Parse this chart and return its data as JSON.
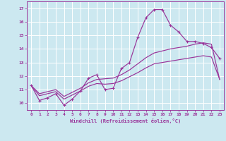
{
  "xlabel": "Windchill (Refroidissement éolien,°C)",
  "xlim": [
    -0.5,
    23.5
  ],
  "ylim": [
    9.5,
    17.5
  ],
  "xticks": [
    0,
    1,
    2,
    3,
    4,
    5,
    6,
    7,
    8,
    9,
    10,
    11,
    12,
    13,
    14,
    15,
    16,
    17,
    18,
    19,
    20,
    21,
    22,
    23
  ],
  "yticks": [
    10,
    11,
    12,
    13,
    14,
    15,
    16,
    17
  ],
  "background_color": "#cce8f0",
  "line_color": "#993399",
  "grid_color": "#ffffff",
  "line1_x": [
    0,
    1,
    2,
    3,
    4,
    5,
    6,
    7,
    8,
    9,
    10,
    11,
    12,
    13,
    14,
    15,
    16,
    17,
    18,
    19,
    20,
    21,
    22,
    23
  ],
  "line1_y": [
    11.3,
    10.2,
    10.4,
    10.7,
    9.85,
    10.3,
    10.9,
    11.85,
    12.1,
    11.0,
    11.1,
    12.55,
    13.0,
    14.85,
    16.3,
    16.9,
    16.9,
    15.75,
    15.25,
    14.55,
    14.55,
    14.4,
    14.1,
    13.3
  ],
  "line2_x": [
    0,
    1,
    2,
    3,
    4,
    5,
    6,
    7,
    8,
    9,
    10,
    11,
    12,
    13,
    14,
    15,
    16,
    17,
    18,
    19,
    20,
    21,
    22,
    23
  ],
  "line2_y": [
    11.3,
    10.7,
    10.85,
    11.0,
    10.5,
    10.8,
    11.1,
    11.5,
    11.75,
    11.8,
    11.85,
    12.1,
    12.45,
    12.9,
    13.35,
    13.7,
    13.85,
    14.0,
    14.1,
    14.2,
    14.35,
    14.45,
    14.35,
    11.75
  ],
  "line3_x": [
    0,
    1,
    2,
    3,
    4,
    5,
    6,
    7,
    8,
    9,
    10,
    11,
    12,
    13,
    14,
    15,
    16,
    17,
    18,
    19,
    20,
    21,
    22,
    23
  ],
  "line3_y": [
    11.3,
    10.55,
    10.7,
    10.85,
    10.3,
    10.6,
    10.9,
    11.25,
    11.45,
    11.4,
    11.45,
    11.65,
    11.95,
    12.25,
    12.6,
    12.9,
    13.0,
    13.1,
    13.2,
    13.3,
    13.4,
    13.5,
    13.4,
    11.75
  ]
}
